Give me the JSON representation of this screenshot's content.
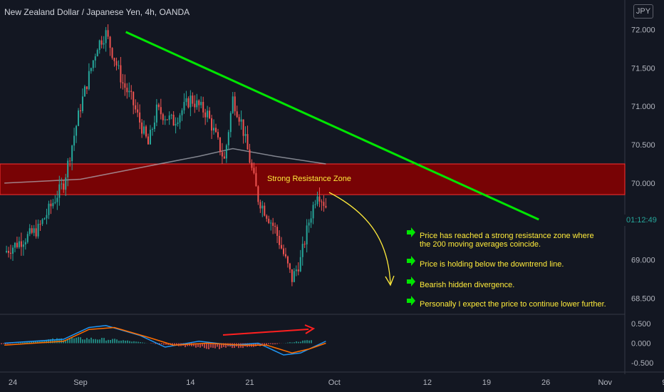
{
  "header": {
    "title": "New Zealand Dollar / Japanese Yen, 4h, OANDA",
    "currency": "JPY"
  },
  "countdown": "01:12:49",
  "zone_label": "Strong Resistance Zone",
  "notes": [
    "Price has reached a strong resistance zone where the 200 moving averages coincide.",
    "Price is holding below the downtrend line.",
    "Bearish hidden divergence.",
    "Personally I expect the price to continue lower further."
  ],
  "colors": {
    "up": "#26a69a",
    "down": "#ef5350",
    "trend": "#00e600",
    "zone": "#8b0000",
    "annotation": "#ffeb3b",
    "arrow-icon": "#00e600",
    "ma": "#b2b5be",
    "macd": "#2196f3",
    "signal": "#ff6d00"
  },
  "chart_data": [
    {
      "type": "candlestick",
      "title": "New Zealand Dollar / Japanese Yen, 4h, OANDA",
      "x_tick_labels": [
        "24",
        "Sep",
        "14",
        "21",
        "Oct",
        "12",
        "19",
        "26",
        "Nov",
        "9"
      ],
      "y_tick_labels": [
        "72.000",
        "71.500",
        "71.000",
        "70.500",
        "70.000",
        "69.000",
        "68.500"
      ],
      "ylim": [
        68.3,
        72.2
      ],
      "anchor_points": [
        {
          "x": "Aug 23",
          "price": 69.1
        },
        {
          "x": "Aug 27",
          "price": 69.4
        },
        {
          "x": "Aug 30",
          "price": 70.0
        },
        {
          "x": "Sep 1",
          "price": 71.0
        },
        {
          "x": "Sep 3",
          "price": 71.8
        },
        {
          "x": "Sep 4",
          "price": 71.95
        },
        {
          "x": "Sep 6",
          "price": 71.3
        },
        {
          "x": "Sep 7",
          "price": 71.1
        },
        {
          "x": "Sep 9",
          "price": 70.5
        },
        {
          "x": "Sep 10",
          "price": 70.95
        },
        {
          "x": "Sep 12",
          "price": 70.8
        },
        {
          "x": "Sep 14",
          "price": 71.1
        },
        {
          "x": "Sep 16",
          "price": 70.9
        },
        {
          "x": "Sep 18",
          "price": 70.3
        },
        {
          "x": "Sep 19",
          "price": 71.1
        },
        {
          "x": "Sep 20",
          "price": 70.8
        },
        {
          "x": "Sep 22",
          "price": 69.8
        },
        {
          "x": "Sep 24",
          "price": 69.4
        },
        {
          "x": "Sep 26",
          "price": 68.75
        },
        {
          "x": "Sep 27",
          "price": 69.0
        },
        {
          "x": "Sep 28",
          "price": 69.5
        },
        {
          "x": "Sep 29",
          "price": 69.9
        },
        {
          "x": "Sep 30",
          "price": 69.7
        }
      ],
      "ma200": [
        [
          "Aug 23",
          70.0
        ],
        [
          "Sep 1",
          70.05
        ],
        [
          "Sep 8",
          70.2
        ],
        [
          "Sep 15",
          70.35
        ],
        [
          "Sep 19",
          70.45
        ],
        [
          "Sep 24",
          70.35
        ],
        [
          "Sep 30",
          70.25
        ]
      ],
      "last_price_label": "01:12:49",
      "resistance_zone": [
        69.85,
        70.25
      ],
      "trendline": {
        "from": {
          "x": "Sep 4",
          "price": 71.95
        },
        "to": {
          "x": "Oct 25",
          "price": 69.6
        }
      }
    },
    {
      "type": "line",
      "title": "",
      "y_tick_labels": [
        "0.500",
        "0.000",
        "-0.500"
      ],
      "ylim": [
        -0.7,
        0.7
      ],
      "series": [
        {
          "values": [
            [
              "Aug 23",
              0.0
            ],
            [
              "Aug 30",
              0.1
            ],
            [
              "Sep 2",
              0.4
            ],
            [
              "Sep 4",
              0.45
            ],
            [
              "Sep 8",
              0.2
            ],
            [
              "Sep 11",
              -0.1
            ],
            [
              "Sep 15",
              0.05
            ],
            [
              "Sep 19",
              -0.05
            ],
            [
              "Sep 22",
              0.0
            ],
            [
              "Sep 25",
              -0.3
            ],
            [
              "Sep 27",
              -0.25
            ],
            [
              "Sep 30",
              0.05
            ]
          ]
        },
        {
          "values": [
            [
              "Aug 23",
              -0.05
            ],
            [
              "Aug 30",
              0.05
            ],
            [
              "Sep 2",
              0.35
            ],
            [
              "Sep 5",
              0.4
            ],
            [
              "Sep 9",
              0.15
            ],
            [
              "Sep 12",
              -0.05
            ],
            [
              "Sep 16",
              0.0
            ],
            [
              "Sep 20",
              -0.05
            ],
            [
              "Sep 23",
              -0.05
            ],
            [
              "Sep 26",
              -0.25
            ],
            [
              "Sep 28",
              -0.15
            ],
            [
              "Sep 30",
              0.0
            ]
          ]
        }
      ]
    }
  ]
}
